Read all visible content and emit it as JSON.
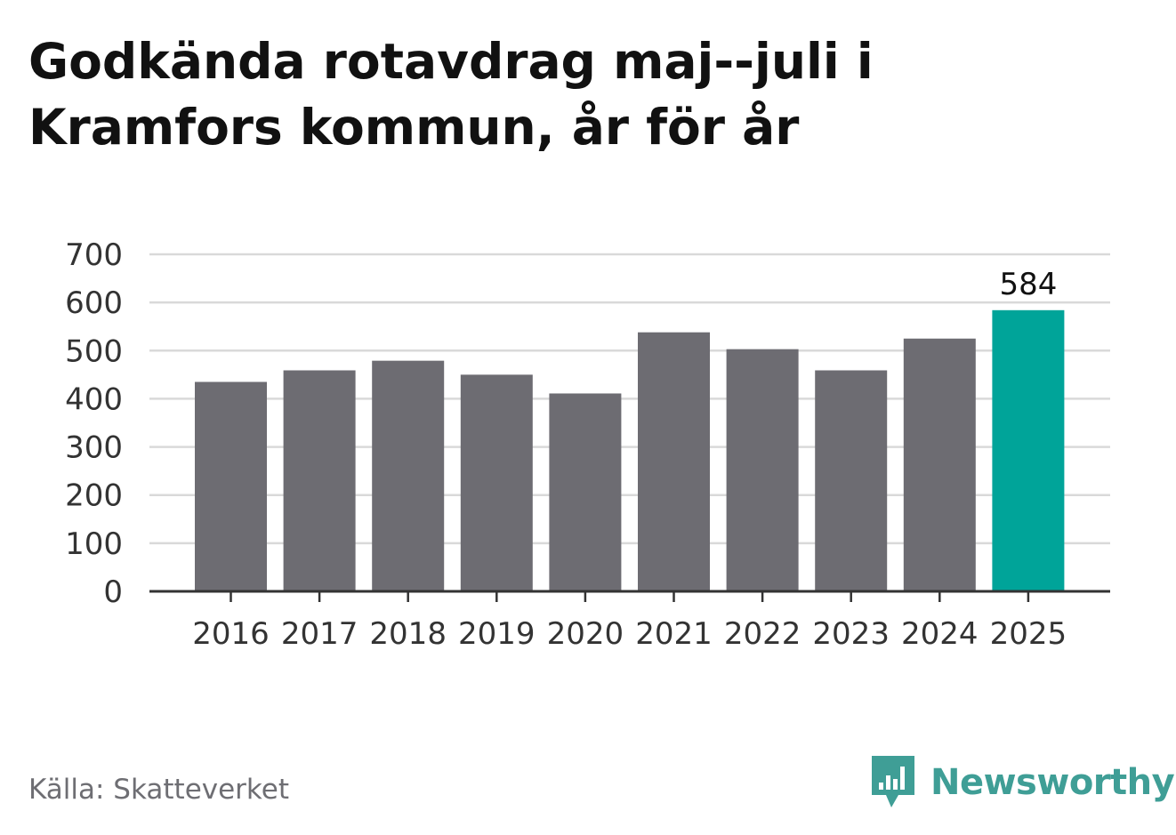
{
  "title": "Godkända rotavdrag maj--juli i\nKramfors kommun, år för år",
  "source": "Källa: Skatteverket",
  "brand": {
    "name": "Newsworthy",
    "icon": "newsworthy-logo-icon",
    "color": "#3f9e96"
  },
  "colors": {
    "bar": "#6d6c72",
    "highlight": "#00a499",
    "grid": "#d9d9d9",
    "axis": "#333333",
    "tick_text": "#333333"
  },
  "chart_data": {
    "type": "bar",
    "title": "Godkända rotavdrag maj--juli i Kramfors kommun, år för år",
    "categories": [
      "2016",
      "2017",
      "2018",
      "2019",
      "2020",
      "2021",
      "2022",
      "2023",
      "2024",
      "2025"
    ],
    "values": [
      435,
      459,
      479,
      450,
      411,
      538,
      503,
      459,
      525,
      584
    ],
    "highlight_index": 9,
    "data_labels": [
      {
        "index": 9,
        "text": "584"
      }
    ],
    "ylim": [
      0,
      700
    ],
    "yticks": [
      "0",
      "100",
      "200",
      "300",
      "400",
      "500",
      "600",
      "700"
    ],
    "grid": true,
    "legend": false
  }
}
